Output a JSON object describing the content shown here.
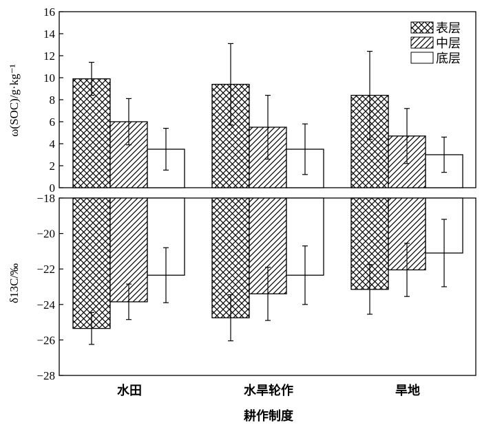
{
  "chart_data": [
    {
      "type": "bar",
      "categories": [
        "水田",
        "水旱轮作",
        "旱地"
      ],
      "ylabel": "ω(SOC)/g·kg⁻¹",
      "ylim": [
        0,
        16
      ],
      "yticks": [
        0,
        2,
        4,
        6,
        8,
        10,
        12,
        14,
        16
      ],
      "legend_position": "top-right",
      "series": [
        {
          "name": "表层",
          "pattern": "crosshatch",
          "values": [
            9.9,
            9.4,
            8.4
          ],
          "errors": [
            1.5,
            3.7,
            4.0
          ]
        },
        {
          "name": "中层",
          "pattern": "diagonal",
          "values": [
            6.0,
            5.5,
            4.7
          ],
          "errors": [
            2.1,
            2.9,
            2.5
          ]
        },
        {
          "name": "底层",
          "pattern": "none",
          "values": [
            3.5,
            3.5,
            3.0
          ],
          "errors": [
            1.9,
            2.3,
            1.6
          ]
        }
      ]
    },
    {
      "type": "bar",
      "categories": [
        "水田",
        "水旱轮作",
        "旱地"
      ],
      "ylabel": "δ13C/‰",
      "ylim": [
        -28,
        -18
      ],
      "yticks": [
        -28,
        -26,
        -24,
        -22,
        -20,
        -18
      ],
      "series": [
        {
          "name": "表层",
          "pattern": "crosshatch",
          "values": [
            -25.35,
            -24.75,
            -23.15
          ],
          "errors": [
            0.9,
            1.3,
            1.4
          ]
        },
        {
          "name": "中层",
          "pattern": "diagonal",
          "values": [
            -23.85,
            -23.4,
            -22.05
          ],
          "errors": [
            1.0,
            1.5,
            1.5
          ]
        },
        {
          "name": "底层",
          "pattern": "none",
          "values": [
            -22.35,
            -22.35,
            -21.1
          ],
          "errors": [
            1.55,
            1.65,
            1.9
          ]
        }
      ]
    }
  ],
  "xlabel": "耕作制度"
}
